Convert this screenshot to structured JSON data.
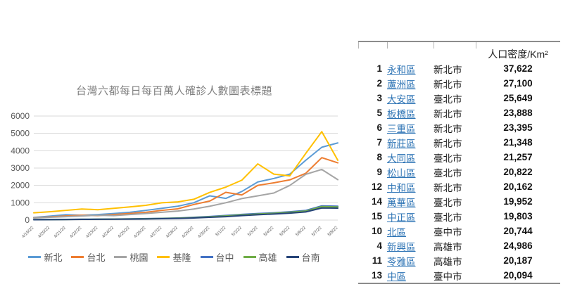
{
  "chart_data": {
    "type": "line",
    "title": "台灣六都每日每百萬人確診人數圖表標題",
    "x": [
      "4/19/22",
      "4/20/22",
      "4/21/22",
      "4/22/22",
      "4/23/22",
      "4/24/22",
      "4/25/22",
      "4/26/22",
      "4/27/22",
      "4/28/22",
      "4/29/22",
      "4/30/22",
      "5/1/22",
      "5/2/22",
      "5/3/22",
      "5/4/22",
      "5/5/22",
      "5/6/22",
      "5/7/22",
      "5/8/22"
    ],
    "series": [
      {
        "name": "新北",
        "color": "#5b9bd5",
        "values": [
          150,
          230,
          310,
          280,
          320,
          380,
          450,
          560,
          680,
          800,
          1000,
          1400,
          1250,
          1650,
          2200,
          2400,
          2650,
          3450,
          4200,
          4450
        ]
      },
      {
        "name": "台北",
        "color": "#ed7d31",
        "values": [
          130,
          180,
          240,
          280,
          260,
          320,
          380,
          450,
          560,
          650,
          900,
          1100,
          1600,
          1450,
          2000,
          2150,
          2320,
          2700,
          3600,
          3300
        ]
      },
      {
        "name": "桃園",
        "color": "#a5a5a5",
        "values": [
          120,
          160,
          200,
          240,
          280,
          260,
          320,
          380,
          450,
          520,
          640,
          800,
          1000,
          1240,
          1400,
          1560,
          2000,
          2640,
          2920,
          2330
        ]
      },
      {
        "name": "基隆",
        "color": "#ffc000",
        "values": [
          420,
          480,
          560,
          640,
          600,
          680,
          760,
          850,
          1000,
          1050,
          1200,
          1600,
          1900,
          2300,
          3240,
          2650,
          2550,
          3850,
          5100,
          3450
        ]
      },
      {
        "name": "台中",
        "color": "#4472c4",
        "values": [
          30,
          35,
          40,
          50,
          55,
          60,
          70,
          85,
          100,
          120,
          160,
          210,
          270,
          330,
          380,
          420,
          480,
          560,
          820,
          800
        ]
      },
      {
        "name": "高雄",
        "color": "#70ad47",
        "values": [
          25,
          30,
          35,
          45,
          50,
          55,
          65,
          75,
          90,
          110,
          140,
          190,
          240,
          300,
          350,
          390,
          450,
          520,
          780,
          760
        ]
      },
      {
        "name": "台南",
        "color": "#264478",
        "values": [
          20,
          25,
          30,
          40,
          45,
          50,
          55,
          65,
          80,
          95,
          120,
          160,
          200,
          260,
          310,
          350,
          400,
          470,
          700,
          690
        ]
      }
    ],
    "ylim": [
      0,
      6000
    ],
    "ytick_step": 1000,
    "grid": true,
    "legend_position": "bottom",
    "title_color": "#7f7f7f",
    "axis_label_color": "#595959",
    "grid_color": "#d9d9d9"
  },
  "table": {
    "header": {
      "density_label": "人口密度/Km²"
    },
    "rows": [
      {
        "rank": "1",
        "district": "永和區",
        "city": "新北市",
        "density": "37,622"
      },
      {
        "rank": "2",
        "district": "蘆洲區",
        "city": "新北市",
        "density": "27,100"
      },
      {
        "rank": "3",
        "district": "大安區",
        "city": "臺北市",
        "density": "25,649"
      },
      {
        "rank": "5",
        "district": "板橋區",
        "city": "新北市",
        "density": "23,888"
      },
      {
        "rank": "6",
        "district": "三重區",
        "city": "新北市",
        "density": "23,395"
      },
      {
        "rank": "7",
        "district": "新莊區",
        "city": "新北市",
        "density": "21,348"
      },
      {
        "rank": "8",
        "district": "大同區",
        "city": "臺北市",
        "density": "21,257"
      },
      {
        "rank": "9",
        "district": "松山區",
        "city": "臺北市",
        "density": "20,822"
      },
      {
        "rank": "12",
        "district": "中和區",
        "city": "新北市",
        "density": "20,162"
      },
      {
        "rank": "14",
        "district": "萬華區",
        "city": "臺北市",
        "density": "19,952"
      },
      {
        "rank": "15",
        "district": "中正區",
        "city": "臺北市",
        "density": "19,803"
      },
      {
        "rank": "10",
        "district": "北區",
        "city": "臺中市",
        "density": "20,744"
      },
      {
        "rank": "4",
        "district": "新興區",
        "city": "高雄市",
        "density": "24,986"
      },
      {
        "rank": "11",
        "district": "苓雅區",
        "city": "高雄市",
        "density": "20,187"
      },
      {
        "rank": "13",
        "district": "中區",
        "city": "臺中市",
        "density": "20,094"
      }
    ]
  }
}
